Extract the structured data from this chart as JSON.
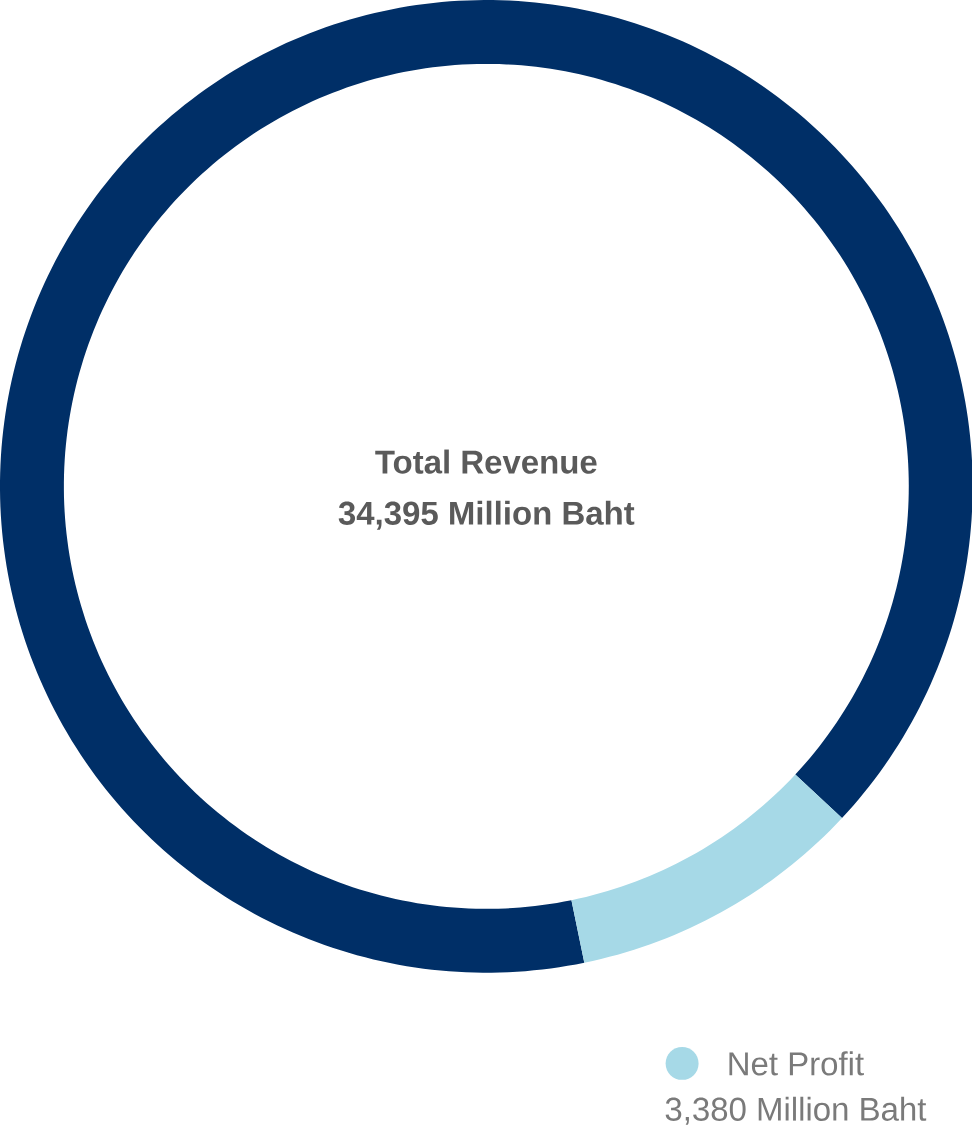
{
  "chart_data": {
    "type": "donut",
    "categories": [
      null,
      "Net Profit"
    ],
    "values": [
      31015,
      3380
    ],
    "colors": [
      "#002f67",
      "#a6d9e7"
    ],
    "value_labels": [
      null,
      "3,380 Million Baht"
    ],
    "annotations": [
      "Total Revenue",
      "34,395 Million Baht"
    ],
    "legend": "bottom right"
  }
}
